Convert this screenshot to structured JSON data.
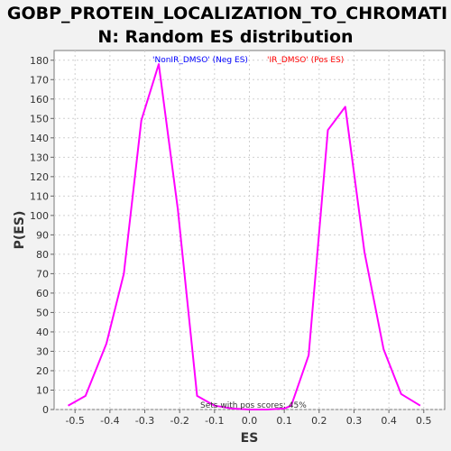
{
  "chart_data": {
    "type": "line",
    "title_line1": "GOBP_PROTEIN_LOCALIZATION_TO_CHROMATI",
    "title_line2": "N: Random ES distribution",
    "xlabel": "ES",
    "ylabel": "P(ES)",
    "xlim": [
      -0.56,
      0.56
    ],
    "ylim": [
      0,
      185
    ],
    "xticks": [
      "-0.5",
      "-0.4",
      "-0.3",
      "-0.2",
      "-0.1",
      "0.0",
      "0.1",
      "0.2",
      "0.3",
      "0.4",
      "0.5"
    ],
    "yticks": [
      "0",
      "10",
      "20",
      "30",
      "40",
      "50",
      "60",
      "70",
      "80",
      "90",
      "100",
      "110",
      "120",
      "130",
      "140",
      "150",
      "160",
      "170",
      "180"
    ],
    "grid": true,
    "series": [
      {
        "color": "#ff00ff",
        "x": [
          -0.52,
          -0.47,
          -0.41,
          -0.36,
          -0.31,
          -0.26,
          -0.205,
          -0.15,
          -0.1,
          -0.05,
          0.0,
          0.05,
          0.1,
          0.12,
          0.17,
          0.225,
          0.275,
          0.33,
          0.385,
          0.435,
          0.49
        ],
        "y": [
          2,
          7,
          34,
          70,
          149,
          178,
          103,
          7,
          2,
          0.5,
          0,
          0,
          0.5,
          2,
          28,
          144,
          156,
          81,
          31,
          8,
          2
        ]
      }
    ],
    "legend": [
      {
        "label": "'NonIR_DMSO' (Neg ES)",
        "color": "#0000ff"
      },
      {
        "label": "'IR_DMSO' (Pos ES)",
        "color": "#ff0000"
      }
    ],
    "legend_position": "top",
    "annotation": "Sets with pos scores: 45%"
  }
}
